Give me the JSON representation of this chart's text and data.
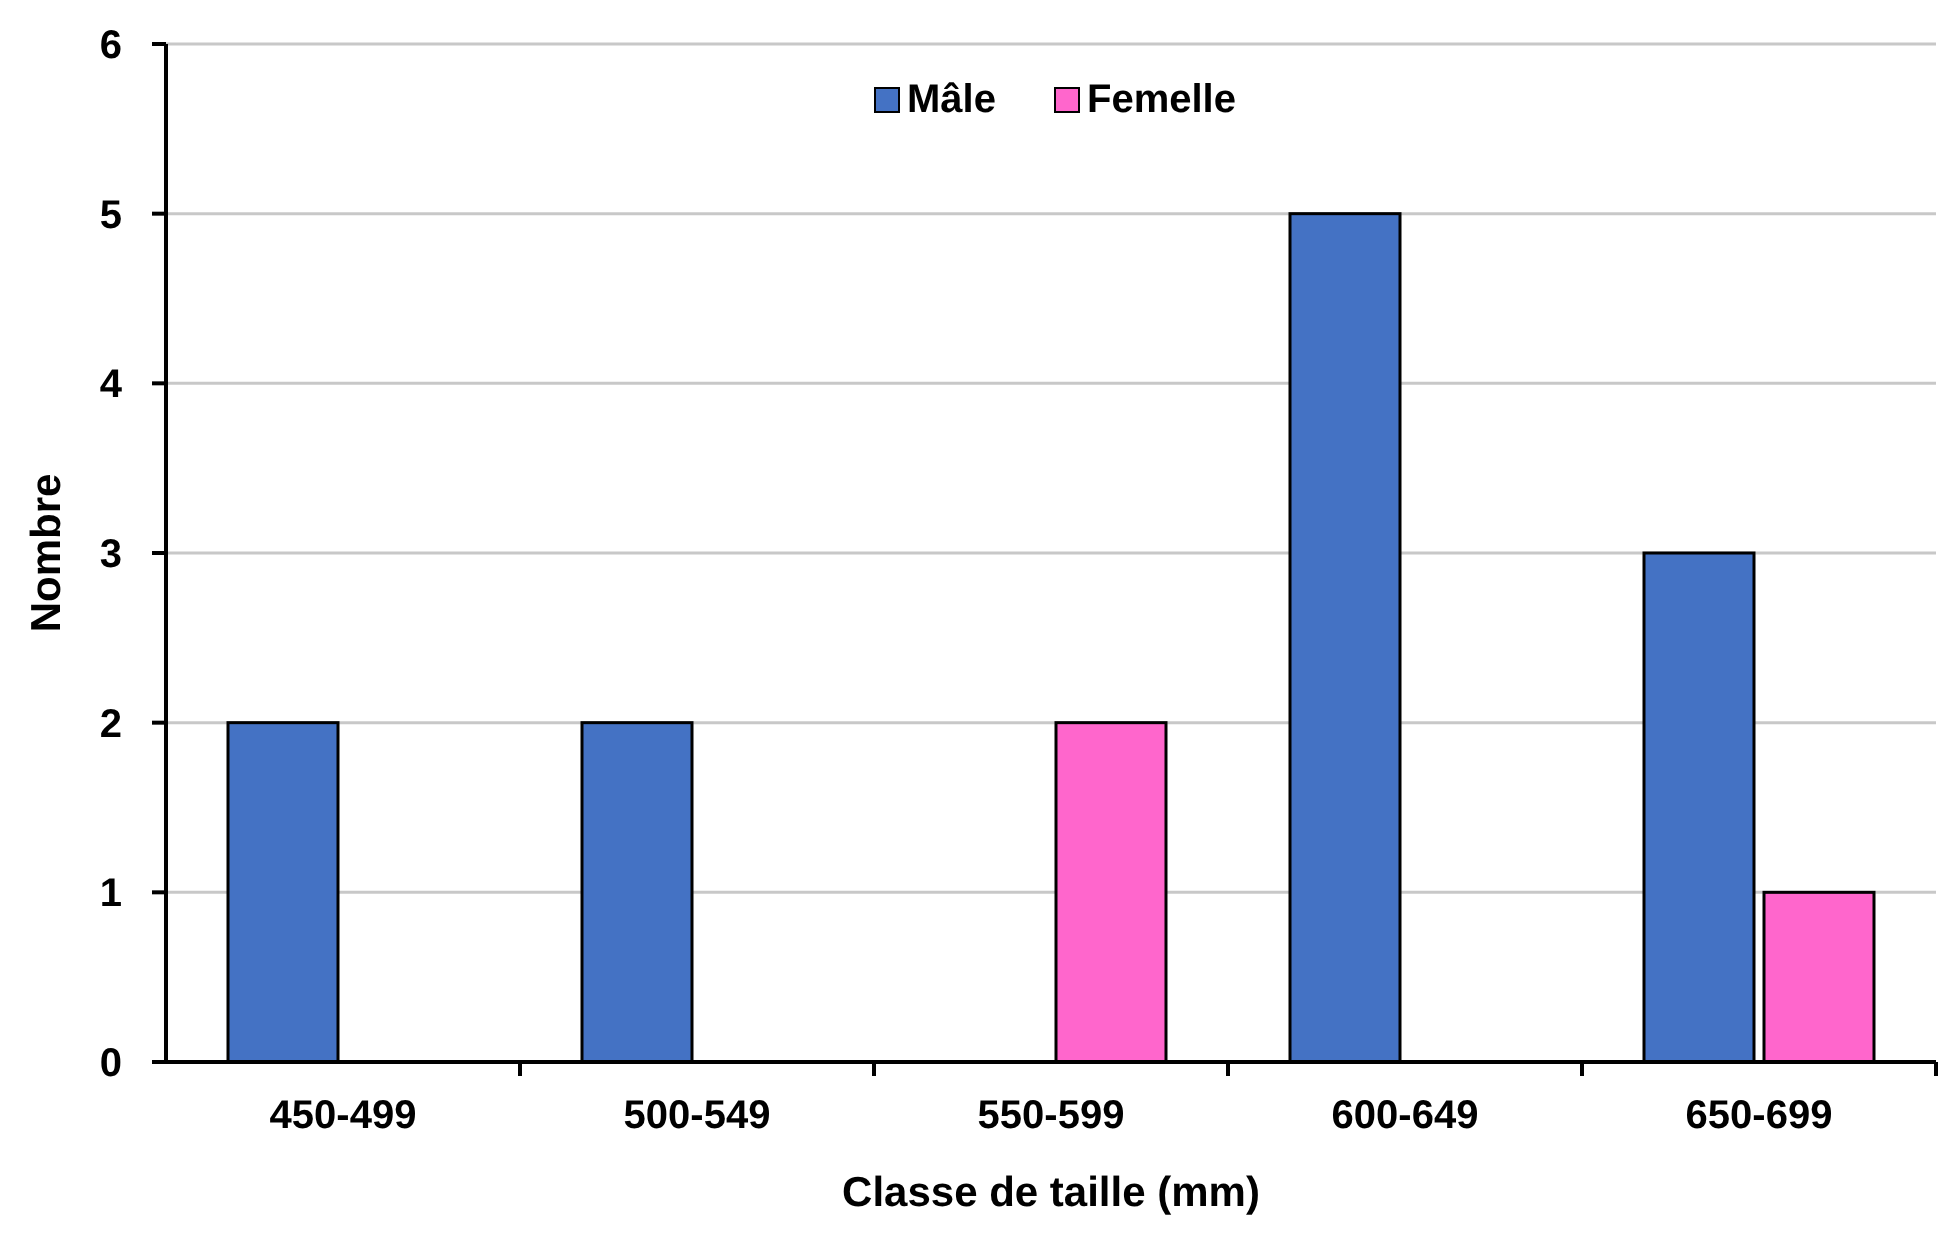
{
  "chart_data": {
    "type": "bar",
    "xlabel": "Classe de taille (mm)",
    "ylabel": "Nombre",
    "categories": [
      "450-499",
      "500-549",
      "550-599",
      "600-649",
      "650-699"
    ],
    "series": [
      {
        "name": "Mâle",
        "color": "#4472c4",
        "values": [
          2,
          2,
          null,
          5,
          3
        ]
      },
      {
        "name": "Femelle",
        "color": "#ff66cc",
        "values": [
          null,
          null,
          2,
          null,
          1
        ]
      }
    ],
    "ylim": [
      0,
      6
    ],
    "yticks": [
      0,
      1,
      2,
      3,
      4,
      5,
      6
    ],
    "grid": "y",
    "legend": "top"
  }
}
